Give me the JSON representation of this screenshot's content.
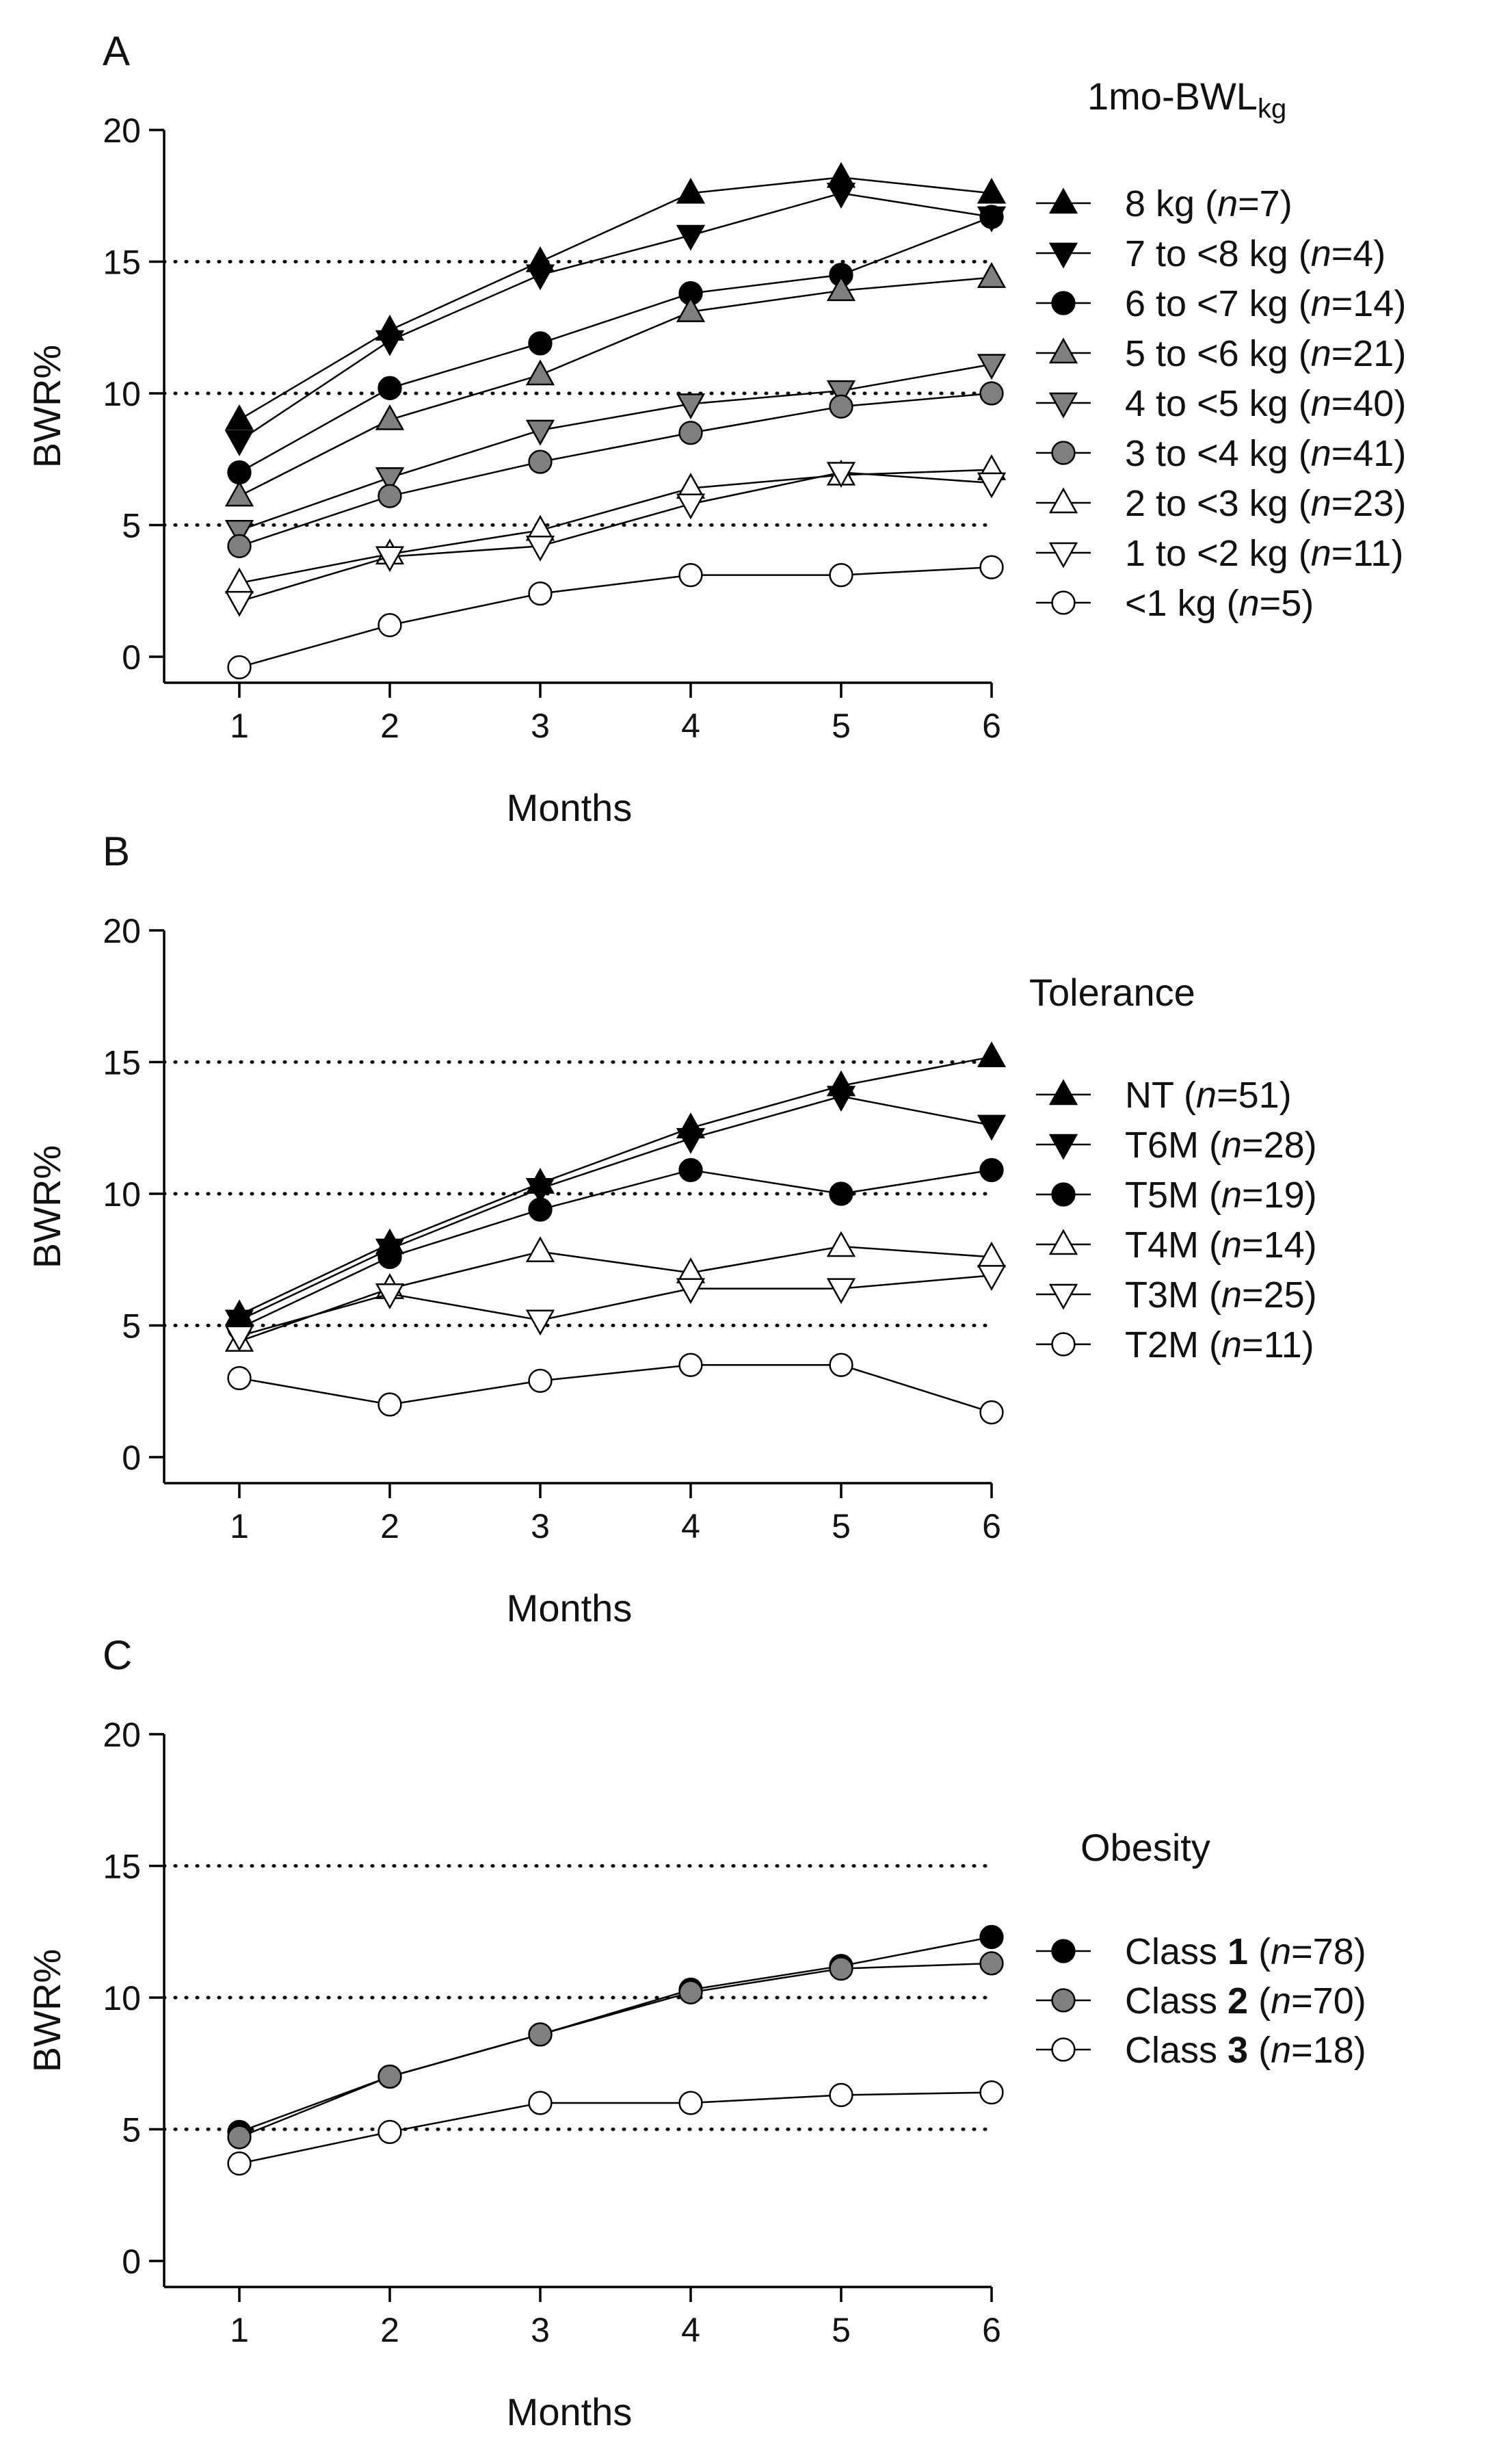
{
  "chart_data": [
    {
      "type": "line",
      "panel_letter": "A",
      "legend_title": "1mo-BWL",
      "legend_title_sub": "kg",
      "xlabel": "Months",
      "ylabel": "BWR%",
      "x": [
        1,
        2,
        3,
        4,
        5,
        6
      ],
      "x_ticks": [
        "1",
        "2",
        "3",
        "4",
        "5",
        "6"
      ],
      "y_ticks": [
        "0",
        "5",
        "10",
        "15",
        "20"
      ],
      "xlim": [
        0.5,
        6.1
      ],
      "ylim": [
        -1,
        20
      ],
      "reference_lines": [
        5,
        10,
        15
      ],
      "legend_position": "right",
      "series": [
        {
          "name": "8 kg",
          "n_label": "n",
          "n_value": "=7",
          "marker": "triangle-up",
          "fill": "#000000",
          "values": [
            9.0,
            12.4,
            15.0,
            17.6,
            18.2,
            17.6
          ]
        },
        {
          "name": "7 to <8 kg",
          "n_label": "n",
          "n_value": "=4",
          "marker": "triangle-down",
          "fill": "#000000",
          "values": [
            8.2,
            12.0,
            14.5,
            16.0,
            17.6,
            16.7
          ]
        },
        {
          "name": "6 to <7 kg",
          "n_label": "n",
          "n_value": "=14",
          "marker": "circle",
          "fill": "#000000",
          "values": [
            7.0,
            10.2,
            11.9,
            13.8,
            14.5,
            16.7
          ]
        },
        {
          "name": "5 to <6 kg",
          "n_label": "n",
          "n_value": "=21",
          "marker": "triangle-up",
          "fill": "#7f7f7f",
          "values": [
            6.1,
            9.0,
            10.7,
            13.1,
            13.9,
            14.4
          ]
        },
        {
          "name": "4 to <5 kg",
          "n_label": "n",
          "n_value": "=40",
          "marker": "triangle-down",
          "fill": "#7f7f7f",
          "values": [
            4.8,
            6.8,
            8.6,
            9.6,
            10.1,
            11.1
          ]
        },
        {
          "name": "3 to <4 kg",
          "n_label": "n",
          "n_value": "=41",
          "marker": "circle",
          "fill": "#7f7f7f",
          "values": [
            4.2,
            6.1,
            7.4,
            8.5,
            9.5,
            10.0
          ]
        },
        {
          "name": "2 to <3 kg",
          "n_label": "n",
          "n_value": "=23",
          "marker": "triangle-up",
          "fill": "#ffffff",
          "values": [
            2.8,
            3.9,
            4.8,
            6.4,
            6.9,
            7.1
          ]
        },
        {
          "name": "1 to <2 kg",
          "n_label": "n",
          "n_value": "=11",
          "marker": "triangle-down",
          "fill": "#ffffff",
          "values": [
            2.1,
            3.8,
            4.2,
            5.8,
            7.0,
            6.6
          ]
        },
        {
          "name": "<1 kg",
          "n_label": "n",
          "n_value": "=5",
          "marker": "circle",
          "fill": "#ffffff",
          "values": [
            -0.4,
            1.2,
            2.4,
            3.1,
            3.1,
            3.4
          ]
        }
      ]
    },
    {
      "type": "line",
      "panel_letter": "B",
      "legend_title": "Tolerance",
      "legend_title_sub": "",
      "xlabel": "Months",
      "ylabel": "BWR%",
      "x": [
        1,
        2,
        3,
        4,
        5,
        6
      ],
      "x_ticks": [
        "1",
        "2",
        "3",
        "4",
        "5",
        "6"
      ],
      "y_ticks": [
        "0",
        "5",
        "10",
        "15",
        "20"
      ],
      "xlim": [
        0.5,
        6.1
      ],
      "ylim": [
        -1,
        20
      ],
      "reference_lines": [
        5,
        10,
        15
      ],
      "legend_position": "right",
      "series": [
        {
          "name": "NT",
          "n_label": "n",
          "n_value": "=51",
          "marker": "triangle-up",
          "fill": "#000000",
          "values": [
            5.4,
            8.1,
            10.4,
            12.5,
            14.1,
            15.2
          ]
        },
        {
          "name": "T6M",
          "n_label": "n",
          "n_value": "=28",
          "marker": "triangle-down",
          "fill": "#000000",
          "values": [
            5.2,
            7.9,
            10.2,
            12.1,
            13.7,
            12.6
          ]
        },
        {
          "name": "T5M",
          "n_label": "n",
          "n_value": "=19",
          "marker": "circle",
          "fill": "#000000",
          "values": [
            4.9,
            7.6,
            9.4,
            10.9,
            10.0,
            10.9
          ]
        },
        {
          "name": "T4M",
          "n_label": "n",
          "n_value": "=14",
          "marker": "triangle-up",
          "fill": "#ffffff",
          "values": [
            4.4,
            6.4,
            7.8,
            7.0,
            8.0,
            7.6
          ]
        },
        {
          "name": "T3M",
          "n_label": "n",
          "n_value": "=25",
          "marker": "triangle-down",
          "fill": "#ffffff",
          "values": [
            4.6,
            6.2,
            5.2,
            6.4,
            6.4,
            6.9
          ]
        },
        {
          "name": "T2M",
          "n_label": "n",
          "n_value": "=11",
          "marker": "circle",
          "fill": "#ffffff",
          "values": [
            3.0,
            2.0,
            2.9,
            3.5,
            3.5,
            1.7
          ]
        }
      ]
    },
    {
      "type": "line",
      "panel_letter": "C",
      "legend_title": "Obesity",
      "legend_title_sub": "",
      "xlabel": "Months",
      "ylabel": "BWR%",
      "x": [
        1,
        2,
        3,
        4,
        5,
        6
      ],
      "x_ticks": [
        "1",
        "2",
        "3",
        "4",
        "5",
        "6"
      ],
      "y_ticks": [
        "0",
        "5",
        "10",
        "15",
        "20"
      ],
      "xlim": [
        0.5,
        6.1
      ],
      "ylim": [
        -1,
        20
      ],
      "reference_lines": [
        5,
        10,
        15
      ],
      "legend_position": "right",
      "series": [
        {
          "name": "Class ",
          "name_bold": "1",
          "n_label": "n",
          "n_value": "=78",
          "marker": "circle",
          "fill": "#000000",
          "values": [
            4.9,
            7.0,
            8.6,
            10.3,
            11.2,
            12.3
          ]
        },
        {
          "name": "Class ",
          "name_bold": "2",
          "n_label": "n",
          "n_value": "=70",
          "marker": "circle",
          "fill": "#7f7f7f",
          "values": [
            4.7,
            7.0,
            8.6,
            10.2,
            11.1,
            11.3
          ]
        },
        {
          "name": "Class ",
          "name_bold": "3",
          "n_label": "n",
          "n_value": "=18",
          "marker": "circle",
          "fill": "#ffffff",
          "values": [
            3.7,
            4.9,
            6.0,
            6.0,
            6.3,
            6.4
          ]
        }
      ]
    }
  ]
}
